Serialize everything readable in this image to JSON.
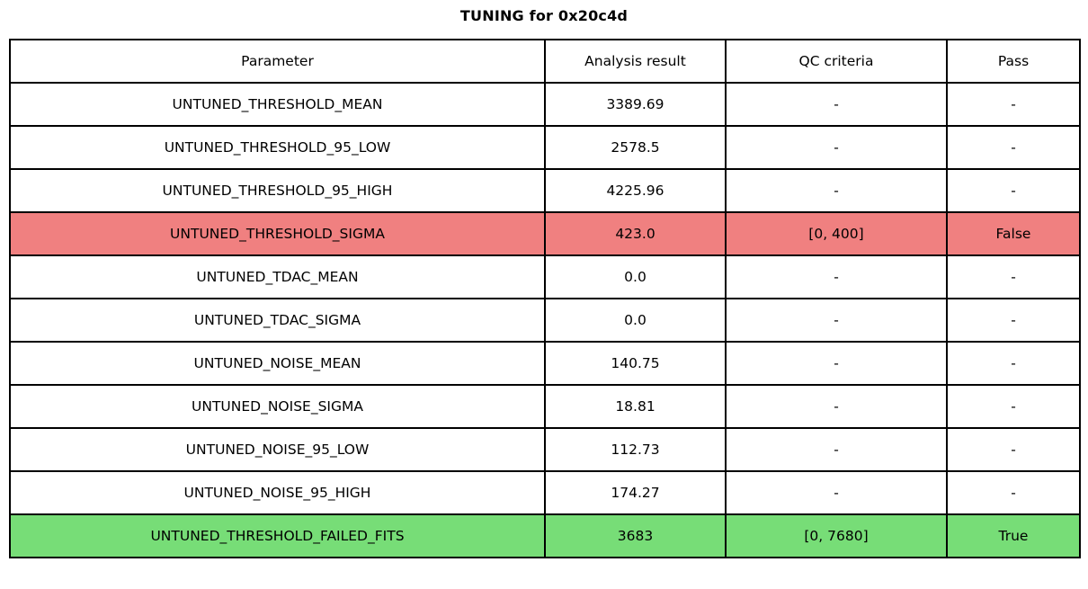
{
  "chart_data": {
    "type": "table",
    "title": "TUNING for 0x20c4d",
    "columns": [
      "Parameter",
      "Analysis result",
      "QC criteria",
      "Pass"
    ],
    "rows": [
      {
        "cells": [
          "UNTUNED_THRESHOLD_MEAN",
          "3389.69",
          "-",
          "-"
        ],
        "status": "none"
      },
      {
        "cells": [
          "UNTUNED_THRESHOLD_95_LOW",
          "2578.5",
          "-",
          "-"
        ],
        "status": "none"
      },
      {
        "cells": [
          "UNTUNED_THRESHOLD_95_HIGH",
          "4225.96",
          "-",
          "-"
        ],
        "status": "none"
      },
      {
        "cells": [
          "UNTUNED_THRESHOLD_SIGMA",
          "423.0",
          "[0, 400]",
          "False"
        ],
        "status": "fail"
      },
      {
        "cells": [
          "UNTUNED_TDAC_MEAN",
          "0.0",
          "-",
          "-"
        ],
        "status": "none"
      },
      {
        "cells": [
          "UNTUNED_TDAC_SIGMA",
          "0.0",
          "-",
          "-"
        ],
        "status": "none"
      },
      {
        "cells": [
          "UNTUNED_NOISE_MEAN",
          "140.75",
          "-",
          "-"
        ],
        "status": "none"
      },
      {
        "cells": [
          "UNTUNED_NOISE_SIGMA",
          "18.81",
          "-",
          "-"
        ],
        "status": "none"
      },
      {
        "cells": [
          "UNTUNED_NOISE_95_LOW",
          "112.73",
          "-",
          "-"
        ],
        "status": "none"
      },
      {
        "cells": [
          "UNTUNED_NOISE_95_HIGH",
          "174.27",
          "-",
          "-"
        ],
        "status": "none"
      },
      {
        "cells": [
          "UNTUNED_THRESHOLD_FAILED_FITS",
          "3683",
          "[0, 7680]",
          "True"
        ],
        "status": "pass"
      }
    ],
    "colors": {
      "fail_row": "#f08080",
      "pass_row": "#77dd77",
      "border": "#000000",
      "background": "#ffffff"
    },
    "layout": {
      "grid": true,
      "legend": "none"
    }
  }
}
